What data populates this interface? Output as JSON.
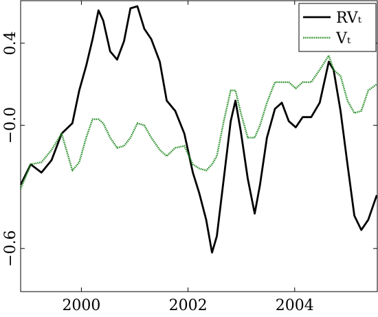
{
  "chart_data": {
    "type": "line",
    "x": [
      1998.86,
      1999.05,
      1999.25,
      1999.44,
      1999.63,
      1999.83,
      1999.96,
      2000.09,
      2000.21,
      2000.32,
      2000.41,
      2000.54,
      2000.67,
      2000.8,
      2000.92,
      2001.05,
      2001.18,
      2001.31,
      2001.47,
      2001.6,
      2001.76,
      2001.93,
      2002.09,
      2002.21,
      2002.34,
      2002.45,
      2002.54,
      2002.67,
      2002.8,
      2002.89,
      2002.99,
      2003.12,
      2003.25,
      2003.35,
      2003.48,
      2003.63,
      2003.76,
      2003.89,
      2004.02,
      2004.15,
      2004.31,
      2004.47,
      2004.64,
      2004.73,
      2004.86,
      2004.99,
      2005.12,
      2005.25,
      2005.38,
      2005.54
    ],
    "series": [
      {
        "name": "RVₜ",
        "color": "#000000",
        "style": "solid",
        "values": [
          -0.29,
          -0.19,
          -0.23,
          -0.17,
          -0.04,
          0.01,
          0.17,
          0.29,
          0.42,
          0.56,
          0.51,
          0.36,
          0.32,
          0.41,
          0.57,
          0.58,
          0.47,
          0.42,
          0.31,
          0.12,
          0.07,
          -0.04,
          -0.23,
          -0.33,
          -0.46,
          -0.62,
          -0.54,
          -0.26,
          0.02,
          0.12,
          -0.03,
          -0.26,
          -0.43,
          -0.29,
          -0.06,
          0.08,
          0.11,
          0.02,
          -0.01,
          0.04,
          0.04,
          0.11,
          0.31,
          0.27,
          0.07,
          -0.19,
          -0.44,
          -0.51,
          -0.46,
          -0.34
        ]
      },
      {
        "name": "Vₜ",
        "color": "#238b23",
        "style": "dotted",
        "values": [
          -0.31,
          -0.19,
          -0.18,
          -0.12,
          -0.04,
          -0.22,
          -0.18,
          -0.06,
          0.03,
          0.03,
          0.01,
          -0.06,
          -0.11,
          -0.1,
          -0.06,
          0.01,
          0,
          -0.06,
          -0.12,
          -0.15,
          -0.11,
          -0.1,
          -0.19,
          -0.21,
          -0.22,
          -0.19,
          -0.15,
          0.02,
          0.17,
          0.17,
          0.06,
          -0.06,
          -0.06,
          0,
          0.11,
          0.21,
          0.21,
          0.21,
          0.18,
          0.21,
          0.21,
          0.27,
          0.34,
          0.27,
          0.24,
          0.12,
          0.06,
          0.07,
          0.17,
          0.2
        ]
      }
    ],
    "xlim": [
      1998.86,
      2005.55
    ],
    "xticks": [
      2000,
      2002,
      2004
    ],
    "ylim": [
      -0.81,
      0.607
    ],
    "yticks": [
      {
        "value": 0.4,
        "label": "0.4"
      },
      {
        "value": 0,
        "label": "−0.0"
      },
      {
        "value": -0.6,
        "label": "−0.6"
      }
    ],
    "legend": "upper right",
    "grid": false
  }
}
